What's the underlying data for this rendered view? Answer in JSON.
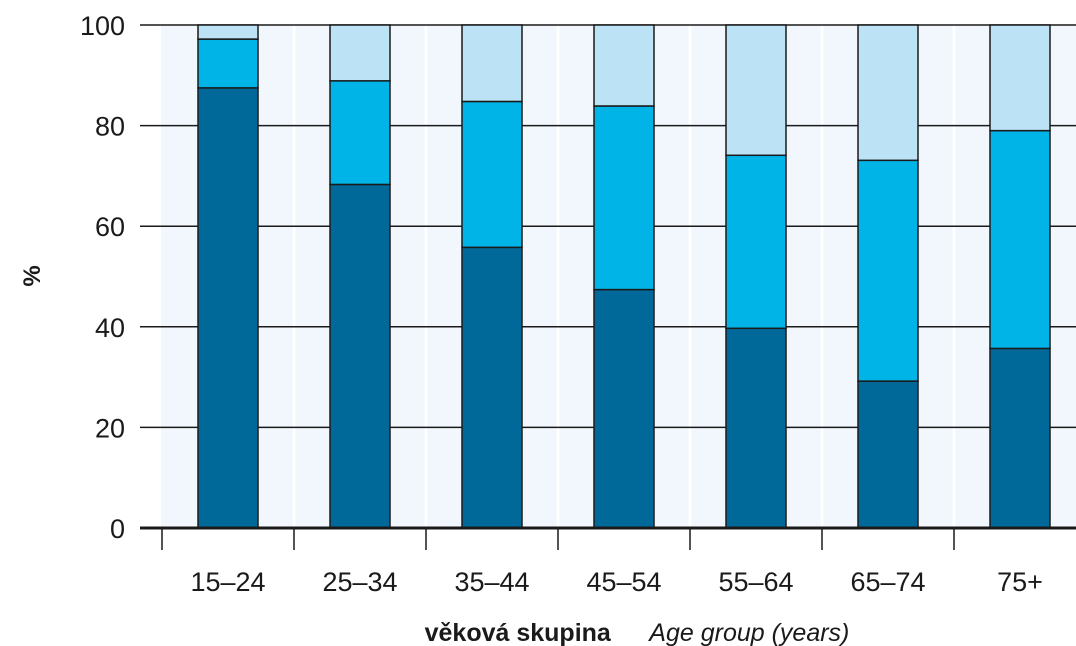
{
  "chart_data": {
    "type": "bar",
    "stacked": true,
    "categories": [
      "15–24",
      "25–34",
      "35–44",
      "45–54",
      "55–64",
      "65–74",
      "75+"
    ],
    "series": [
      {
        "color": "#006999",
        "values": [
          87.5,
          68.3,
          55.8,
          47.4,
          39.7,
          29.2,
          35.7
        ]
      },
      {
        "color": "#00b4e8",
        "values": [
          9.7,
          20.6,
          29.0,
          36.5,
          34.4,
          43.9,
          43.3
        ]
      },
      {
        "color": "#bce2f5",
        "values": [
          2.8,
          11.1,
          15.2,
          16.1,
          25.9,
          26.9,
          21.0
        ]
      }
    ],
    "ylabel": "%",
    "xlabel_primary": "věková skupina",
    "xlabel_secondary": "Age group (years)",
    "ylim": [
      0,
      100
    ],
    "yticks": [
      0,
      20,
      40,
      60,
      80,
      100
    ],
    "grid": "horizontal",
    "colors": {
      "plot_background": "#f1f7fd",
      "gridline": "#1a1a1a",
      "bar_edge": "#1a1a1a"
    }
  }
}
